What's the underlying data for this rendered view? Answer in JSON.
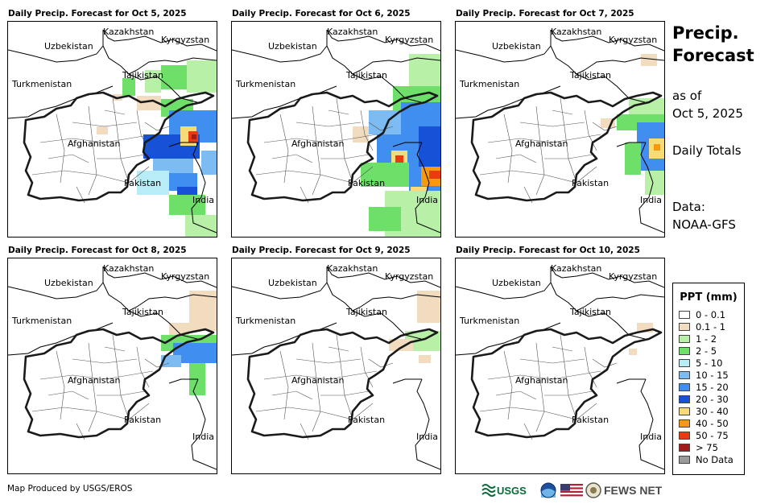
{
  "panels": [
    {
      "title": "Daily Precip. Forecast for Oct 5, 2025"
    },
    {
      "title": "Daily Precip. Forecast for Oct 6, 2025"
    },
    {
      "title": "Daily Precip. Forecast for Oct 7, 2025"
    },
    {
      "title": "Daily Precip. Forecast for Oct 8, 2025"
    },
    {
      "title": "Daily Precip. Forecast for Oct 9, 2025"
    },
    {
      "title": "Daily Precip. Forecast for Oct 10, 2025"
    }
  ],
  "map_labels": {
    "kazakhstan": "Kazakhstan",
    "kyrgyzstan": "Kyrgyzstan",
    "uzbekistan": "Uzbekistan",
    "tajikistan": "Tajikistan",
    "turkmenistan": "Turkmenistan",
    "afghanistan": "Afghanistan",
    "pakistan": "Pakistan",
    "india": "India"
  },
  "side_info": {
    "title_line1": "Precip.",
    "title_line2": "Forecast",
    "as_of": "as of",
    "date": "Oct 5, 2025",
    "totals": "Daily Totals",
    "data_label": "Data:",
    "source": "NOAA-GFS"
  },
  "legend": {
    "title": "PPT (mm)",
    "items": [
      {
        "label": "0 - 0.1",
        "color": "#ffffff"
      },
      {
        "label": "0.1 - 1",
        "color": "#f1dcbf"
      },
      {
        "label": "1 - 2",
        "color": "#b8f0a8"
      },
      {
        "label": "2 - 5",
        "color": "#6ee06a"
      },
      {
        "label": "5 - 10",
        "color": "#b8ecf6"
      },
      {
        "label": "10 - 15",
        "color": "#7cbcf2"
      },
      {
        "label": "15 - 20",
        "color": "#3f8ef0"
      },
      {
        "label": "20 - 30",
        "color": "#1652d8"
      },
      {
        "label": "30 - 40",
        "color": "#f6dc78"
      },
      {
        "label": "40 - 50",
        "color": "#f59a10"
      },
      {
        "label": "50 - 75",
        "color": "#ea3b10"
      },
      {
        "label": "> 75",
        "color": "#a11b1b"
      },
      {
        "label": "No Data",
        "color": "#9b9b9b"
      }
    ]
  },
  "footer": {
    "credit": "Map Produced by USGS/EROS",
    "usgs": "USGS",
    "fewsnet": "FEWS NET"
  }
}
